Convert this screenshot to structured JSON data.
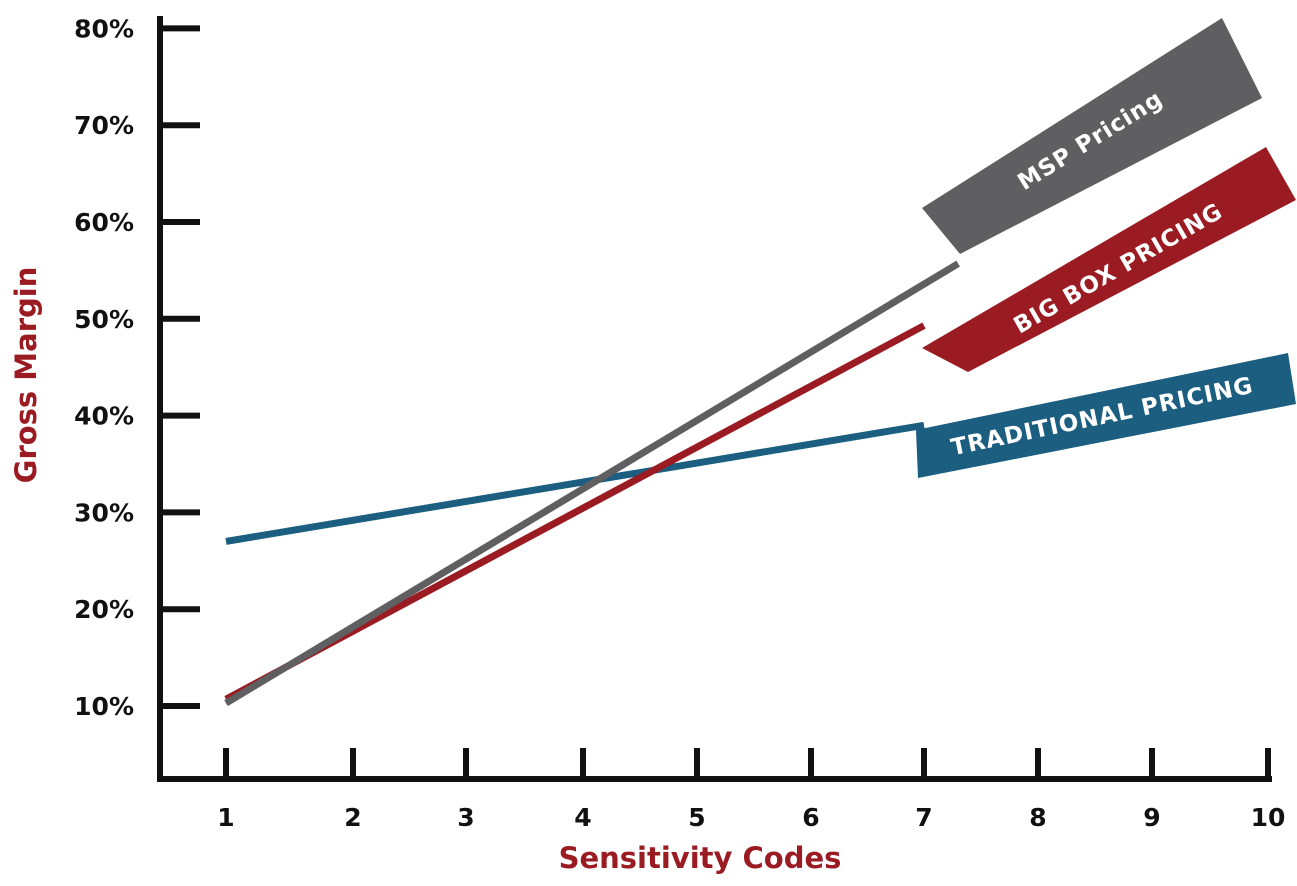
{
  "chart_data": {
    "type": "line",
    "xlabel": "Sensitivity Codes",
    "ylabel": "Gross Margin",
    "x_ticks": [
      "1",
      "2",
      "3",
      "4",
      "5",
      "6",
      "7",
      "8",
      "9",
      "10"
    ],
    "y_ticks": [
      "10%",
      "20%",
      "30%",
      "40%",
      "50%",
      "60%",
      "70%",
      "80%"
    ],
    "xlim": [
      1,
      10
    ],
    "ylim": [
      10,
      80
    ],
    "grid": false,
    "legend": "labels on lines",
    "series": [
      {
        "name": "TRADITIONAL PRICING",
        "color": "#1b5e80",
        "x": [
          1,
          7
        ],
        "y": [
          27,
          39
        ]
      },
      {
        "name": "BIG BOX PRICING",
        "color": "#9b1b22",
        "x": [
          1,
          7
        ],
        "y": [
          10.7,
          49.3
        ]
      },
      {
        "name": "MSP Pricing",
        "color": "#5f5f61",
        "x": [
          1,
          7.3
        ],
        "y": [
          10.3,
          55.7
        ]
      }
    ]
  },
  "colors": {
    "axis": "#111111",
    "axis_title": "#9b1b22"
  }
}
